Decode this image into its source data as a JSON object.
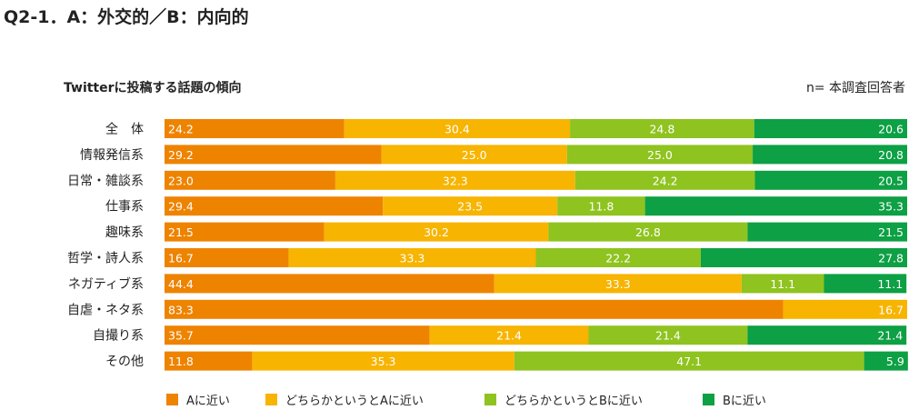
{
  "title": "Q2-1．A：外交的／B：内向的",
  "chart_data": {
    "type": "bar",
    "orientation": "horizontal",
    "stacked": true,
    "title": "Twitterに投稿する話題の傾向",
    "note": "n= 本調査回答者",
    "xlim": [
      0,
      100
    ],
    "grid": false,
    "legend_position": "bottom",
    "categories": [
      "全　体",
      "情報発信系",
      "日常・雑談系",
      "仕事系",
      "趣味系",
      "哲学・詩人系",
      "ネガティブ系",
      "自虐・ネタ系",
      "自撮り系",
      "その他"
    ],
    "series": [
      {
        "name": "Aに近い",
        "color": "#EE8300",
        "values": [
          24.2,
          29.2,
          23.0,
          29.4,
          21.5,
          16.7,
          44.4,
          83.3,
          35.7,
          11.8
        ]
      },
      {
        "name": "どちらかというとAに近い",
        "color": "#F7B400",
        "values": [
          30.4,
          25.0,
          32.3,
          23.5,
          30.2,
          33.3,
          33.3,
          16.7,
          21.4,
          35.3
        ]
      },
      {
        "name": "どちらかというとBに近い",
        "color": "#8FC31F",
        "values": [
          24.8,
          25.0,
          24.2,
          11.8,
          26.8,
          22.2,
          11.1,
          0,
          21.4,
          47.1
        ]
      },
      {
        "name": "Bに近い",
        "color": "#0DA044",
        "values": [
          20.6,
          20.8,
          20.5,
          35.3,
          21.5,
          27.8,
          11.1,
          0,
          21.4,
          5.9
        ]
      }
    ]
  }
}
